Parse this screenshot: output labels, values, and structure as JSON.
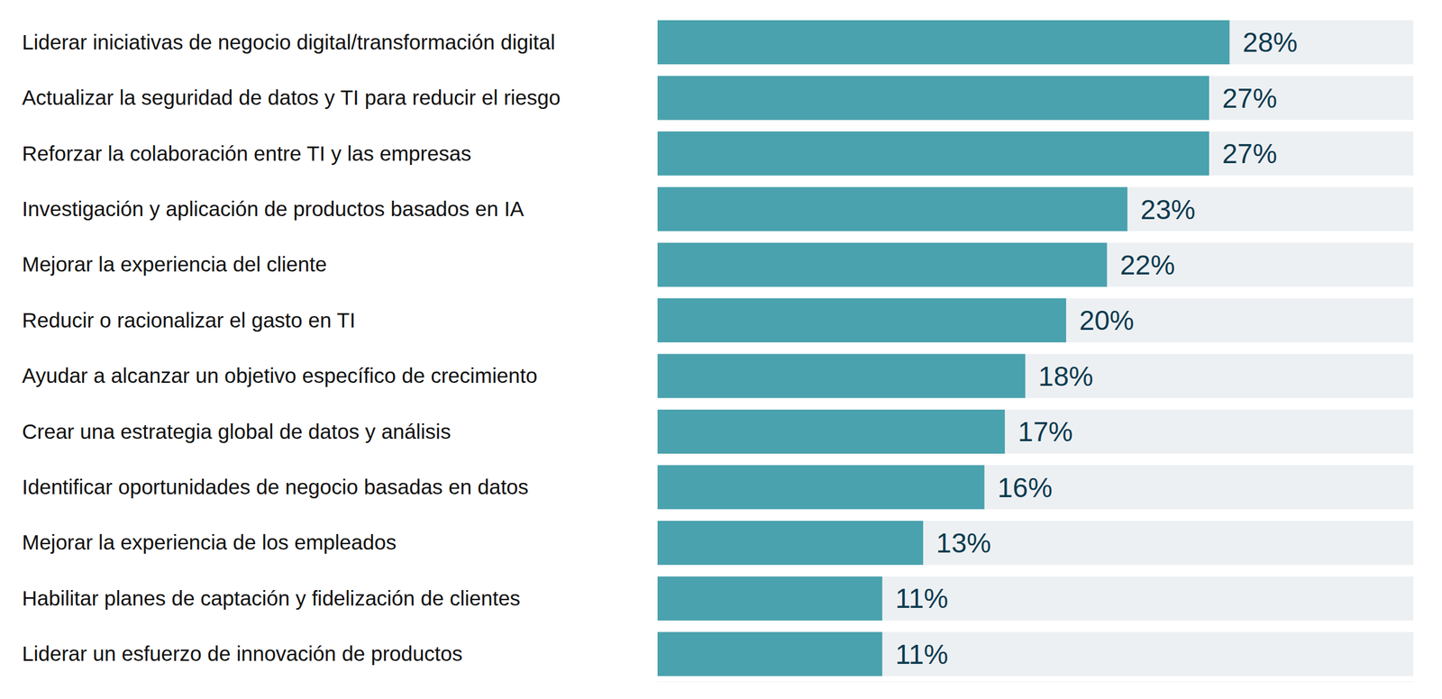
{
  "chart_data": {
    "type": "bar",
    "orientation": "horizontal",
    "categories": [
      "Liderar iniciativas de negocio digital/transformación digital",
      "Actualizar la seguridad de datos y TI para reducir el riesgo",
      "Reforzar la colaboración entre TI y las empresas",
      "Investigación y aplicación de productos basados en IA",
      "Mejorar la experiencia del cliente",
      "Reducir o racionalizar el gasto en TI",
      "Ayudar a alcanzar un objetivo específico de crecimiento",
      "Crear una estrategia global de datos y análisis",
      "Identificar oportunidades de negocio basadas en datos",
      "Mejorar la experiencia de los empleados",
      "Habilitar planes de captación y fidelización de clientes",
      "Liderar un esfuerzo de innovación de productos"
    ],
    "values": [
      28,
      27,
      27,
      23,
      22,
      20,
      18,
      17,
      16,
      13,
      11,
      11
    ],
    "value_labels": [
      "28%",
      "27%",
      "27%",
      "23%",
      "22%",
      "20%",
      "18%",
      "17%",
      "16%",
      "13%",
      "11%",
      "11%"
    ],
    "color": "#49a2ad",
    "xlim": [
      0,
      37
    ],
    "data_labels": true,
    "tick_labels": "y",
    "grid": false
  }
}
